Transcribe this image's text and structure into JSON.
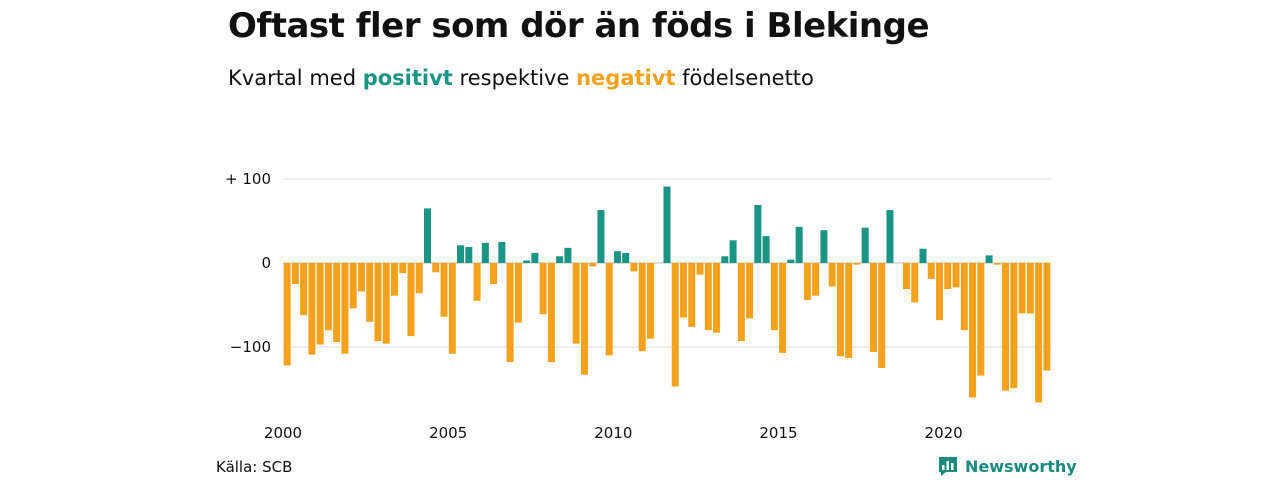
{
  "title": "Oftast fler som dör än föds i Blekinge",
  "subtitle": {
    "prefix": "Kvartal med",
    "positive": "positivt",
    "middle": "respektive",
    "negative": "negativt",
    "suffix": "födelsenetto"
  },
  "source": "Källa: SCB",
  "brand": "Newsworthy",
  "icons": {
    "brand": "bar-chart-speech-bubble-icon"
  },
  "colors": {
    "positive": "#1a9485",
    "negative": "#f4a11d",
    "grid": "#dddddd"
  },
  "chart_data": {
    "type": "bar",
    "x_start": "2000 Q1",
    "frequency": "quarterly",
    "ylim": [
      -180,
      110
    ],
    "yticks": [
      {
        "value": 100,
        "label": "+ 100"
      },
      {
        "value": 0,
        "label": "0"
      },
      {
        "value": -100,
        "label": "−100"
      }
    ],
    "xticks": [
      "2000",
      "2005",
      "2010",
      "2015",
      "2020"
    ],
    "grid": "horizontal",
    "values": [
      -122,
      -25,
      -62,
      -109,
      -97,
      -80,
      -94,
      -108,
      -54,
      -34,
      -70,
      -93,
      -96,
      -39,
      -12,
      -87,
      -36,
      65,
      -11,
      -64,
      -108,
      21,
      19,
      -45,
      24,
      -25,
      25,
      -118,
      -71,
      3,
      12,
      -61,
      -118,
      8,
      18,
      -96,
      -133,
      -4,
      63,
      -110,
      14,
      12,
      -10,
      -105,
      -90,
      0,
      91,
      -147,
      -65,
      -76,
      -14,
      -80,
      -83,
      8,
      27,
      -93,
      -66,
      69,
      32,
      -80,
      -107,
      4,
      43,
      -44,
      -39,
      39,
      -28,
      -111,
      -113,
      -2,
      42,
      -106,
      -125,
      63,
      0,
      -31,
      -47,
      17,
      -19,
      -68,
      -31,
      -29,
      -80,
      -160,
      -134,
      9,
      -2,
      -152,
      -149,
      -60,
      -60,
      -166,
      -128
    ]
  }
}
